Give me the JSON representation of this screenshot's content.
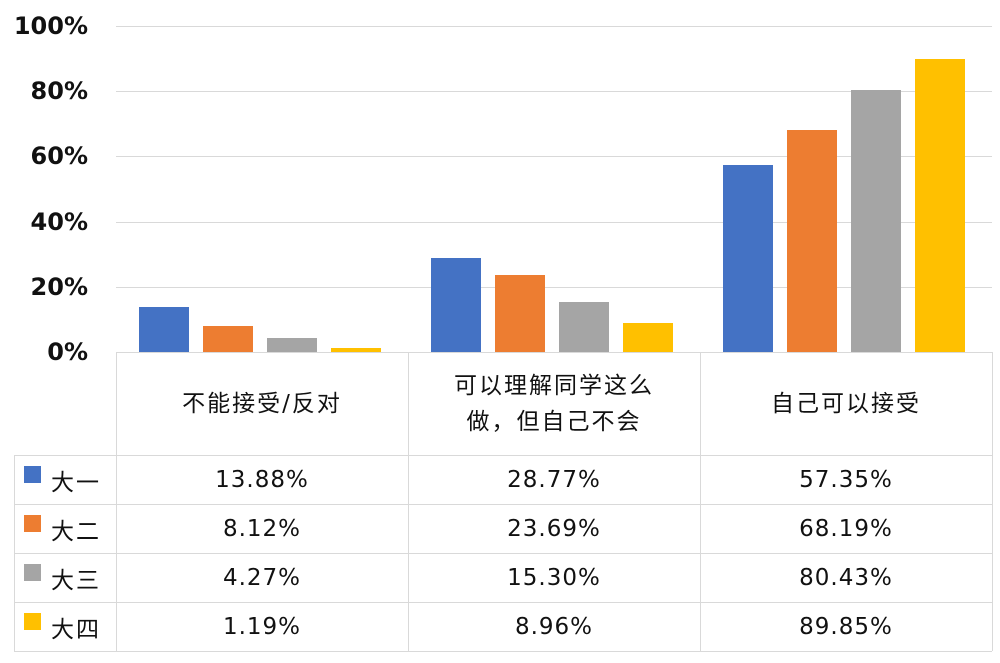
{
  "chart_data": {
    "type": "bar",
    "title": "",
    "xlabel": "",
    "ylabel": "",
    "ylim": [
      0,
      100
    ],
    "yticks": [
      "0%",
      "20%",
      "40%",
      "60%",
      "80%",
      "100%"
    ],
    "grid": true,
    "legend_position": "data-table-left",
    "categories": [
      "不能接受/反对",
      "可以理解同学这么做，但自己不会",
      "自己可以接受"
    ],
    "category_lines": [
      [
        "不能接受/反对"
      ],
      [
        "可以理解同学这么",
        "做，但自己不会"
      ],
      [
        "自己可以接受"
      ]
    ],
    "series": [
      {
        "name": "大一",
        "color": "#4472C4",
        "values": [
          13.88,
          28.77,
          57.35
        ],
        "labels": [
          "13.88%",
          "28.77%",
          "57.35%"
        ]
      },
      {
        "name": "大二",
        "color": "#ED7D31",
        "values": [
          8.12,
          23.69,
          68.19
        ],
        "labels": [
          "8.12%",
          "23.69%",
          "68.19%"
        ]
      },
      {
        "name": "大三",
        "color": "#A5A5A5",
        "values": [
          4.27,
          15.3,
          80.43
        ],
        "labels": [
          "4.27%",
          "15.30%",
          "80.43%"
        ]
      },
      {
        "name": "大四",
        "color": "#FFC000",
        "values": [
          1.19,
          8.96,
          89.85
        ],
        "labels": [
          "1.19%",
          "8.96%",
          "89.85%"
        ]
      }
    ]
  }
}
